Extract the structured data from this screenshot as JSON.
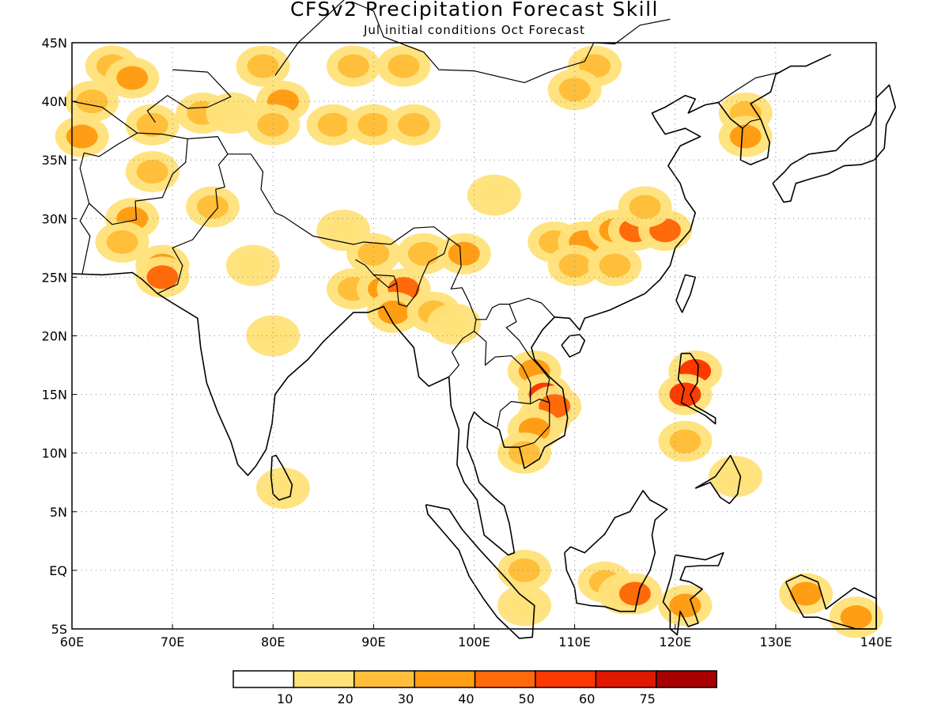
{
  "title": "CFSv2 Precipitation Forecast Skill",
  "subtitle": "Jul initial conditions  Oct Forecast",
  "chart_data": {
    "type": "heatmap",
    "title": "CFSv2 Precipitation Forecast Skill",
    "subtitle": "Jul initial conditions  Oct Forecast",
    "xlim": [
      60,
      140
    ],
    "ylim": [
      -5,
      45
    ],
    "x_ticks": [
      {
        "value": 60,
        "label": "60E"
      },
      {
        "value": 70,
        "label": "70E"
      },
      {
        "value": 80,
        "label": "80E"
      },
      {
        "value": 90,
        "label": "90E"
      },
      {
        "value": 100,
        "label": "100E"
      },
      {
        "value": 110,
        "label": "110E"
      },
      {
        "value": 120,
        "label": "120E"
      },
      {
        "value": 130,
        "label": "130E"
      },
      {
        "value": 140,
        "label": "140E"
      }
    ],
    "y_ticks": [
      {
        "value": -5,
        "label": "5S"
      },
      {
        "value": 0,
        "label": "EQ"
      },
      {
        "value": 5,
        "label": "5N"
      },
      {
        "value": 10,
        "label": "10N"
      },
      {
        "value": 15,
        "label": "15N"
      },
      {
        "value": 20,
        "label": "20N"
      },
      {
        "value": 25,
        "label": "25N"
      },
      {
        "value": 30,
        "label": "30N"
      },
      {
        "value": 35,
        "label": "35N"
      },
      {
        "value": 40,
        "label": "40N"
      },
      {
        "value": 45,
        "label": "45N"
      }
    ],
    "grid": true,
    "legend_placement": "bottom",
    "legend": {
      "colors": [
        "#ffffff",
        "#ffe27a",
        "#ffbf3a",
        "#ff9e14",
        "#ff6a0a",
        "#ff3a00",
        "#e01800",
        "#a80000"
      ],
      "labels": [
        "10",
        "20",
        "30",
        "40",
        "50",
        "60",
        "75"
      ]
    },
    "cells": [
      {
        "lon": 64,
        "lat": 43,
        "v": 20
      },
      {
        "lon": 66,
        "lat": 42,
        "v": 30
      },
      {
        "lon": 62,
        "lat": 40,
        "v": 20
      },
      {
        "lon": 61,
        "lat": 37,
        "v": 30
      },
      {
        "lon": 68,
        "lat": 38,
        "v": 20
      },
      {
        "lon": 73,
        "lat": 39,
        "v": 20
      },
      {
        "lon": 76,
        "lat": 39,
        "v": 10
      },
      {
        "lon": 79,
        "lat": 43,
        "v": 20
      },
      {
        "lon": 81,
        "lat": 40,
        "v": 30
      },
      {
        "lon": 80,
        "lat": 38,
        "v": 20
      },
      {
        "lon": 86,
        "lat": 38,
        "v": 20
      },
      {
        "lon": 90,
        "lat": 38,
        "v": 20
      },
      {
        "lon": 94,
        "lat": 38,
        "v": 20
      },
      {
        "lon": 93,
        "lat": 43,
        "v": 20
      },
      {
        "lon": 88,
        "lat": 43,
        "v": 20
      },
      {
        "lon": 112,
        "lat": 43,
        "v": 20
      },
      {
        "lon": 110,
        "lat": 41,
        "v": 20
      },
      {
        "lon": 66,
        "lat": 30,
        "v": 30
      },
      {
        "lon": 65,
        "lat": 28,
        "v": 20
      },
      {
        "lon": 69,
        "lat": 26,
        "v": 30
      },
      {
        "lon": 69,
        "lat": 25,
        "v": 40
      },
      {
        "lon": 68,
        "lat": 34,
        "v": 20
      },
      {
        "lon": 74,
        "lat": 31,
        "v": 20
      },
      {
        "lon": 78,
        "lat": 26,
        "v": 10
      },
      {
        "lon": 87,
        "lat": 29,
        "v": 10
      },
      {
        "lon": 90,
        "lat": 27,
        "v": 20
      },
      {
        "lon": 95,
        "lat": 27,
        "v": 20
      },
      {
        "lon": 99,
        "lat": 27,
        "v": 30
      },
      {
        "lon": 88,
        "lat": 24,
        "v": 20
      },
      {
        "lon": 91,
        "lat": 24,
        "v": 30
      },
      {
        "lon": 93,
        "lat": 24,
        "v": 40
      },
      {
        "lon": 92,
        "lat": 22,
        "v": 30
      },
      {
        "lon": 96,
        "lat": 22,
        "v": 20
      },
      {
        "lon": 98,
        "lat": 21,
        "v": 10
      },
      {
        "lon": 80,
        "lat": 20,
        "v": 10
      },
      {
        "lon": 102,
        "lat": 32,
        "v": 10
      },
      {
        "lon": 108,
        "lat": 28,
        "v": 20
      },
      {
        "lon": 111,
        "lat": 28,
        "v": 30
      },
      {
        "lon": 114,
        "lat": 29,
        "v": 30
      },
      {
        "lon": 116,
        "lat": 29,
        "v": 40
      },
      {
        "lon": 119,
        "lat": 29,
        "v": 40
      },
      {
        "lon": 117,
        "lat": 31,
        "v": 20
      },
      {
        "lon": 110,
        "lat": 26,
        "v": 20
      },
      {
        "lon": 114,
        "lat": 26,
        "v": 20
      },
      {
        "lon": 127,
        "lat": 39,
        "v": 20
      },
      {
        "lon": 127,
        "lat": 37,
        "v": 30
      },
      {
        "lon": 106,
        "lat": 17,
        "v": 30
      },
      {
        "lon": 107,
        "lat": 15,
        "v": 50
      },
      {
        "lon": 107,
        "lat": 13,
        "v": 50
      },
      {
        "lon": 108,
        "lat": 14,
        "v": 40
      },
      {
        "lon": 106,
        "lat": 12,
        "v": 30
      },
      {
        "lon": 105,
        "lat": 10,
        "v": 20
      },
      {
        "lon": 122,
        "lat": 17,
        "v": 50
      },
      {
        "lon": 121,
        "lat": 15,
        "v": 50
      },
      {
        "lon": 121,
        "lat": 11,
        "v": 20
      },
      {
        "lon": 126,
        "lat": 8,
        "v": 10
      },
      {
        "lon": 81,
        "lat": 7,
        "v": 10
      },
      {
        "lon": 105,
        "lat": 0,
        "v": 20
      },
      {
        "lon": 105,
        "lat": -3,
        "v": 10
      },
      {
        "lon": 113,
        "lat": -1,
        "v": 20
      },
      {
        "lon": 115,
        "lat": -2,
        "v": 30
      },
      {
        "lon": 116,
        "lat": -2,
        "v": 40
      },
      {
        "lon": 121,
        "lat": -3,
        "v": 30
      },
      {
        "lon": 133,
        "lat": -2,
        "v": 30
      },
      {
        "lon": 138,
        "lat": -4,
        "v": 30
      }
    ]
  }
}
